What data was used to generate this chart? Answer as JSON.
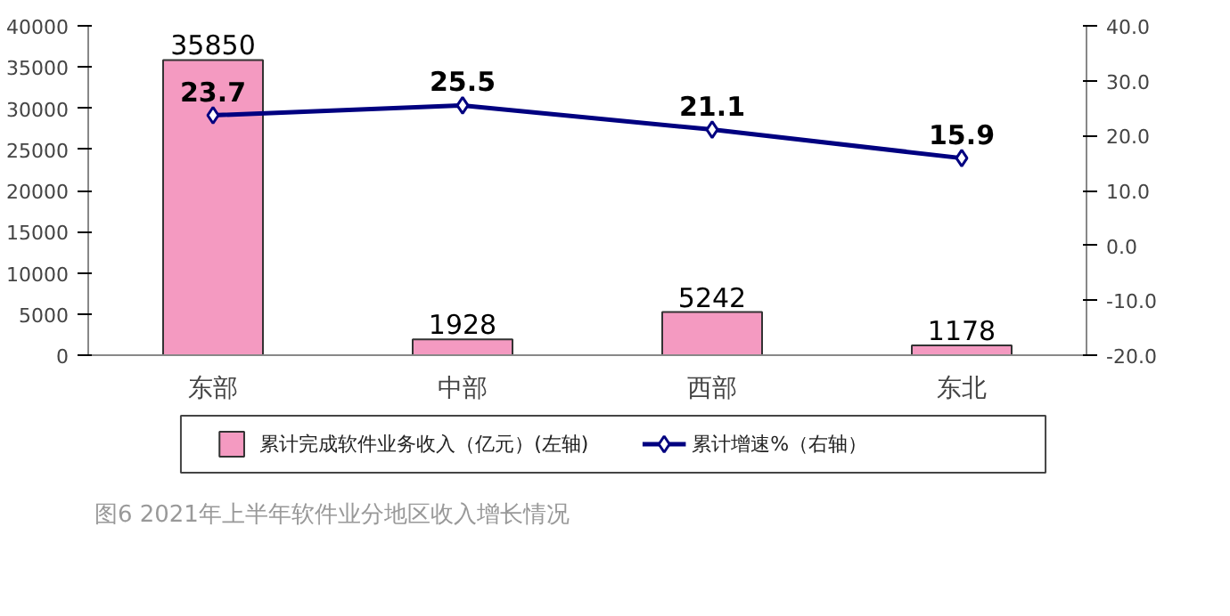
{
  "chart_data": {
    "type": "bar",
    "categories": [
      "东部",
      "中部",
      "西部",
      "东北"
    ],
    "series": [
      {
        "name": "累计完成软件业务收入（亿元）(左轴)",
        "type": "bar",
        "color": "#f49ac1",
        "values": [
          35850,
          1928,
          5242,
          1178
        ]
      },
      {
        "name": "累计增速%（右轴）",
        "type": "line",
        "axis": "y2",
        "color": "#000080",
        "marker": "diamond",
        "values": [
          23.7,
          25.5,
          21.1,
          15.9
        ]
      }
    ],
    "ylim": [
      0,
      40000
    ],
    "yticks": [
      0,
      5000,
      10000,
      15000,
      20000,
      25000,
      30000,
      35000,
      40000
    ],
    "y2lim": [
      -20,
      40
    ],
    "y2ticks": [
      {
        "value": -20,
        "label": "-20.0"
      },
      {
        "value": -10,
        "label": "-10.0"
      },
      {
        "value": 0,
        "label": "0.0"
      },
      {
        "value": 10,
        "label": "10.0"
      },
      {
        "value": 20,
        "label": "20.0"
      },
      {
        "value": 30,
        "label": "30.0"
      },
      {
        "value": 40,
        "label": "40.0"
      }
    ],
    "data_labels": true,
    "legend": "bottom",
    "grid": false,
    "annotations": [
      "图6  2021年上半年软件业分地区收入增长情况"
    ]
  }
}
